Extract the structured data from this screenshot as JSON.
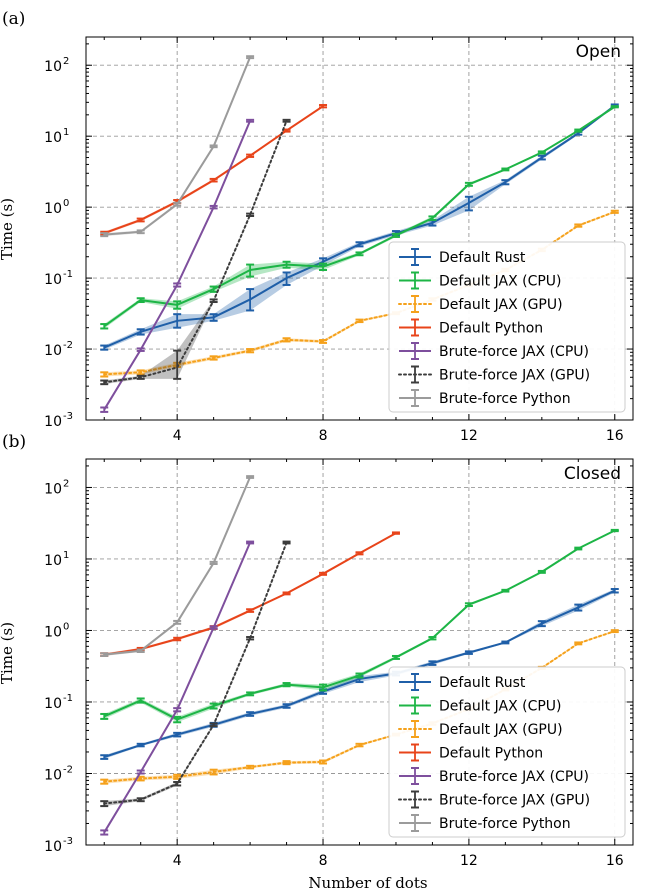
{
  "figure": {
    "xlabel": "Number of dots",
    "ylabel": "Time (s)"
  },
  "chart_data": [
    {
      "type": "line",
      "panel_label": "(a)",
      "title": "Open",
      "xlabel": "",
      "ylabel": "Time (s)",
      "xlim": [
        1.5,
        16.5
      ],
      "ylim": [
        0.001,
        250
      ],
      "yscale": "log",
      "xticks": [
        4,
        8,
        12,
        16
      ],
      "yticks": [
        0.001,
        0.01,
        0.1,
        1,
        10,
        100
      ],
      "ytick_labels": [
        [
          "10",
          "-3"
        ],
        [
          "10",
          "-2"
        ],
        [
          "10",
          "-1"
        ],
        [
          "10",
          "0"
        ],
        [
          "10",
          "1"
        ],
        [
          "10",
          "2"
        ]
      ],
      "grid": true,
      "legend_position": "lower-right",
      "series": [
        {
          "name": "Default Rust",
          "color": "#1f5fa8",
          "dash": "solid",
          "x": [
            2,
            3,
            4,
            5,
            6,
            7,
            8,
            9,
            10,
            11,
            12,
            13,
            14,
            15,
            16
          ],
          "y": [
            0.0105,
            0.0175,
            0.025,
            0.028,
            0.05,
            0.1,
            0.17,
            0.3,
            0.43,
            0.6,
            1.15,
            2.25,
            5.0,
            11.0,
            27.0
          ],
          "lo": [
            0.0098,
            0.016,
            0.02,
            0.025,
            0.035,
            0.08,
            0.15,
            0.28,
            0.4,
            0.55,
            0.9,
            2.1,
            4.7,
            10.5,
            26.0
          ],
          "hi": [
            0.0112,
            0.019,
            0.031,
            0.031,
            0.07,
            0.12,
            0.19,
            0.32,
            0.46,
            0.65,
            1.4,
            2.4,
            5.3,
            11.5,
            28.0
          ]
        },
        {
          "name": "Default JAX (CPU)",
          "color": "#1db546",
          "dash": "solid",
          "x": [
            2,
            3,
            4,
            5,
            6,
            7,
            8,
            9,
            10,
            11,
            12,
            13,
            14,
            15,
            16
          ],
          "y": [
            0.021,
            0.049,
            0.042,
            0.07,
            0.13,
            0.155,
            0.145,
            0.22,
            0.4,
            0.7,
            2.1,
            3.4,
            5.9,
            12.0,
            26.0
          ],
          "lo": [
            0.0195,
            0.046,
            0.037,
            0.064,
            0.105,
            0.14,
            0.13,
            0.21,
            0.38,
            0.66,
            2.0,
            3.3,
            5.7,
            11.6,
            25.5
          ],
          "hi": [
            0.0225,
            0.052,
            0.047,
            0.076,
            0.155,
            0.17,
            0.16,
            0.23,
            0.42,
            0.74,
            2.2,
            3.5,
            6.1,
            12.4,
            26.5
          ]
        },
        {
          "name": "Default JAX (GPU)",
          "color": "#f5a11b",
          "dash": "dot",
          "x": [
            2,
            3,
            4,
            5,
            6,
            7,
            8,
            9,
            10,
            11,
            12,
            13,
            14,
            15,
            16
          ],
          "y": [
            0.0044,
            0.0047,
            0.006,
            0.0075,
            0.0095,
            0.0135,
            0.0128,
            0.025,
            0.032,
            0.05,
            0.08,
            0.13,
            0.25,
            0.55,
            0.86
          ],
          "lo": [
            0.0041,
            0.0044,
            0.0056,
            0.0071,
            0.009,
            0.0128,
            0.0122,
            0.024,
            0.031,
            0.048,
            0.077,
            0.125,
            0.24,
            0.53,
            0.83
          ],
          "hi": [
            0.0047,
            0.005,
            0.0064,
            0.0079,
            0.01,
            0.0142,
            0.0134,
            0.026,
            0.033,
            0.052,
            0.083,
            0.135,
            0.26,
            0.57,
            0.89
          ]
        },
        {
          "name": "Default Python",
          "color": "#e8441a",
          "dash": "solid",
          "x": [
            2,
            3,
            4,
            5,
            6,
            7,
            8
          ],
          "y": [
            0.43,
            0.66,
            1.2,
            2.4,
            5.3,
            12.0,
            26.5
          ],
          "lo": [
            0.41,
            0.63,
            1.14,
            2.3,
            5.1,
            11.6,
            25.5
          ],
          "hi": [
            0.45,
            0.69,
            1.26,
            2.5,
            5.5,
            12.4,
            27.5
          ]
        },
        {
          "name": "Brute-force JAX (CPU)",
          "color": "#7e4f9d",
          "dash": "solid",
          "x": [
            2,
            3,
            4,
            5,
            6
          ],
          "y": [
            0.0014,
            0.0098,
            0.08,
            1.0,
            16.5
          ],
          "lo": [
            0.0013,
            0.0094,
            0.076,
            0.96,
            16.0
          ],
          "hi": [
            0.0015,
            0.0102,
            0.084,
            1.04,
            17.0
          ]
        },
        {
          "name": "Brute-force JAX (GPU)",
          "color": "#3c3c3c",
          "dash": "dot",
          "x": [
            2,
            3,
            4,
            5,
            6,
            7
          ],
          "y": [
            0.0034,
            0.004,
            0.0055,
            0.048,
            0.78,
            16.5
          ],
          "lo": [
            0.0032,
            0.0038,
            0.0038,
            0.046,
            0.75,
            16.0
          ],
          "hi": [
            0.0036,
            0.0042,
            0.0095,
            0.05,
            0.81,
            17.0
          ]
        },
        {
          "name": "Brute-force Python",
          "color": "#9b9b9b",
          "dash": "solid",
          "x": [
            2,
            3,
            4,
            5,
            6
          ],
          "y": [
            0.41,
            0.45,
            1.1,
            7.2,
            130.0
          ],
          "lo": [
            0.39,
            0.43,
            1.05,
            7.0,
            126.0
          ],
          "hi": [
            0.43,
            0.47,
            1.15,
            7.4,
            134.0
          ]
        }
      ]
    },
    {
      "type": "line",
      "panel_label": "(b)",
      "title": "Closed",
      "xlabel": "Number of dots",
      "ylabel": "Time (s)",
      "xlim": [
        1.5,
        16.5
      ],
      "ylim": [
        0.001,
        250
      ],
      "yscale": "log",
      "xticks": [
        4,
        8,
        12,
        16
      ],
      "yticks": [
        0.001,
        0.01,
        0.1,
        1,
        10,
        100
      ],
      "ytick_labels": [
        [
          "10",
          "-3"
        ],
        [
          "10",
          "-2"
        ],
        [
          "10",
          "-1"
        ],
        [
          "10",
          "0"
        ],
        [
          "10",
          "1"
        ],
        [
          "10",
          "2"
        ]
      ],
      "grid": true,
      "legend_position": "lower-right",
      "series": [
        {
          "name": "Default Rust",
          "color": "#1f5fa8",
          "dash": "solid",
          "x": [
            2,
            3,
            4,
            5,
            6,
            7,
            8,
            9,
            10,
            11,
            12,
            13,
            14,
            15,
            16
          ],
          "y": [
            0.017,
            0.025,
            0.035,
            0.048,
            0.068,
            0.088,
            0.14,
            0.21,
            0.25,
            0.35,
            0.49,
            0.68,
            1.25,
            2.1,
            3.6
          ],
          "lo": [
            0.016,
            0.024,
            0.033,
            0.045,
            0.064,
            0.083,
            0.13,
            0.19,
            0.235,
            0.33,
            0.47,
            0.66,
            1.15,
            1.9,
            3.4
          ],
          "hi": [
            0.018,
            0.026,
            0.037,
            0.051,
            0.072,
            0.093,
            0.15,
            0.23,
            0.265,
            0.37,
            0.51,
            0.7,
            1.35,
            2.3,
            3.8
          ]
        },
        {
          "name": "Default JAX (CPU)",
          "color": "#1db546",
          "dash": "solid",
          "x": [
            2,
            3,
            4,
            5,
            6,
            7,
            8,
            9,
            10,
            11,
            12,
            13,
            14,
            15,
            16
          ],
          "y": [
            0.063,
            0.105,
            0.057,
            0.088,
            0.13,
            0.175,
            0.16,
            0.235,
            0.42,
            0.78,
            2.3,
            3.6,
            6.6,
            14.0,
            25.0
          ],
          "lo": [
            0.058,
            0.098,
            0.052,
            0.081,
            0.124,
            0.166,
            0.145,
            0.22,
            0.4,
            0.75,
            2.2,
            3.5,
            6.4,
            13.6,
            24.5
          ],
          "hi": [
            0.068,
            0.112,
            0.062,
            0.095,
            0.136,
            0.184,
            0.175,
            0.25,
            0.44,
            0.81,
            2.4,
            3.7,
            6.8,
            14.4,
            25.5
          ]
        },
        {
          "name": "Default JAX (GPU)",
          "color": "#f5a11b",
          "dash": "dot",
          "x": [
            2,
            3,
            4,
            5,
            6,
            7,
            8,
            9,
            10,
            11,
            12,
            13,
            14,
            15,
            16
          ],
          "y": [
            0.0077,
            0.0085,
            0.009,
            0.0105,
            0.0123,
            0.0142,
            0.0145,
            0.025,
            0.035,
            0.05,
            0.08,
            0.15,
            0.3,
            0.66,
            0.98
          ],
          "lo": [
            0.0072,
            0.008,
            0.0084,
            0.0097,
            0.0118,
            0.0135,
            0.0138,
            0.024,
            0.034,
            0.048,
            0.077,
            0.145,
            0.29,
            0.64,
            0.95
          ],
          "hi": [
            0.0082,
            0.009,
            0.0096,
            0.0113,
            0.0128,
            0.0149,
            0.0152,
            0.026,
            0.036,
            0.052,
            0.083,
            0.155,
            0.31,
            0.68,
            1.01
          ]
        },
        {
          "name": "Default Python",
          "color": "#e8441a",
          "dash": "solid",
          "x": [
            2,
            3,
            4,
            5,
            6,
            7,
            8,
            9,
            10
          ],
          "y": [
            0.46,
            0.55,
            0.76,
            1.1,
            1.9,
            3.3,
            6.2,
            12.0,
            23.0
          ],
          "lo": [
            0.44,
            0.53,
            0.73,
            1.05,
            1.82,
            3.2,
            6.0,
            11.6,
            22.5
          ],
          "hi": [
            0.48,
            0.57,
            0.79,
            1.15,
            1.98,
            3.4,
            6.4,
            12.4,
            23.5
          ]
        },
        {
          "name": "Brute-force JAX (CPU)",
          "color": "#7e4f9d",
          "dash": "solid",
          "x": [
            2,
            3,
            4,
            5,
            6
          ],
          "y": [
            0.0015,
            0.0105,
            0.078,
            1.1,
            17.0
          ],
          "lo": [
            0.0014,
            0.01,
            0.074,
            1.06,
            16.5
          ],
          "hi": [
            0.0016,
            0.011,
            0.082,
            1.14,
            17.5
          ]
        },
        {
          "name": "Brute-force JAX (GPU)",
          "color": "#3c3c3c",
          "dash": "dot",
          "x": [
            2,
            3,
            4,
            5,
            6,
            7
          ],
          "y": [
            0.0038,
            0.0043,
            0.0072,
            0.048,
            0.78,
            17.0
          ],
          "lo": [
            0.0035,
            0.0041,
            0.0068,
            0.046,
            0.75,
            16.5
          ],
          "hi": [
            0.0041,
            0.0045,
            0.0076,
            0.05,
            0.81,
            17.5
          ]
        },
        {
          "name": "Brute-force Python",
          "color": "#9b9b9b",
          "dash": "solid",
          "x": [
            2,
            3,
            4,
            5,
            6
          ],
          "y": [
            0.46,
            0.52,
            1.3,
            8.8,
            140.0
          ],
          "lo": [
            0.44,
            0.5,
            1.24,
            8.5,
            136.0
          ],
          "hi": [
            0.48,
            0.54,
            1.36,
            9.1,
            144.0
          ]
        }
      ]
    }
  ]
}
